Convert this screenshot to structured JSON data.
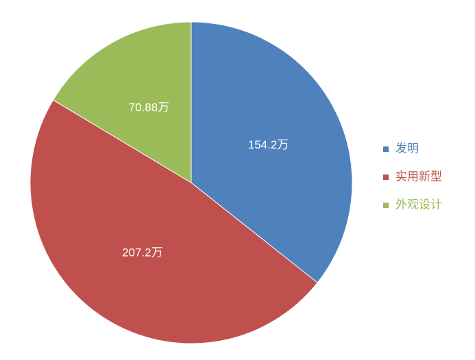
{
  "chart_data": {
    "type": "pie",
    "categories": [
      "发明",
      "实用新型",
      "外观设计"
    ],
    "values": [
      154.2,
      207.2,
      70.88
    ],
    "value_labels": [
      "154.2万",
      "207.2万",
      "70.88万"
    ],
    "colors": [
      "#4f81bd",
      "#c0504d",
      "#9bbb59"
    ],
    "legend": "right"
  }
}
